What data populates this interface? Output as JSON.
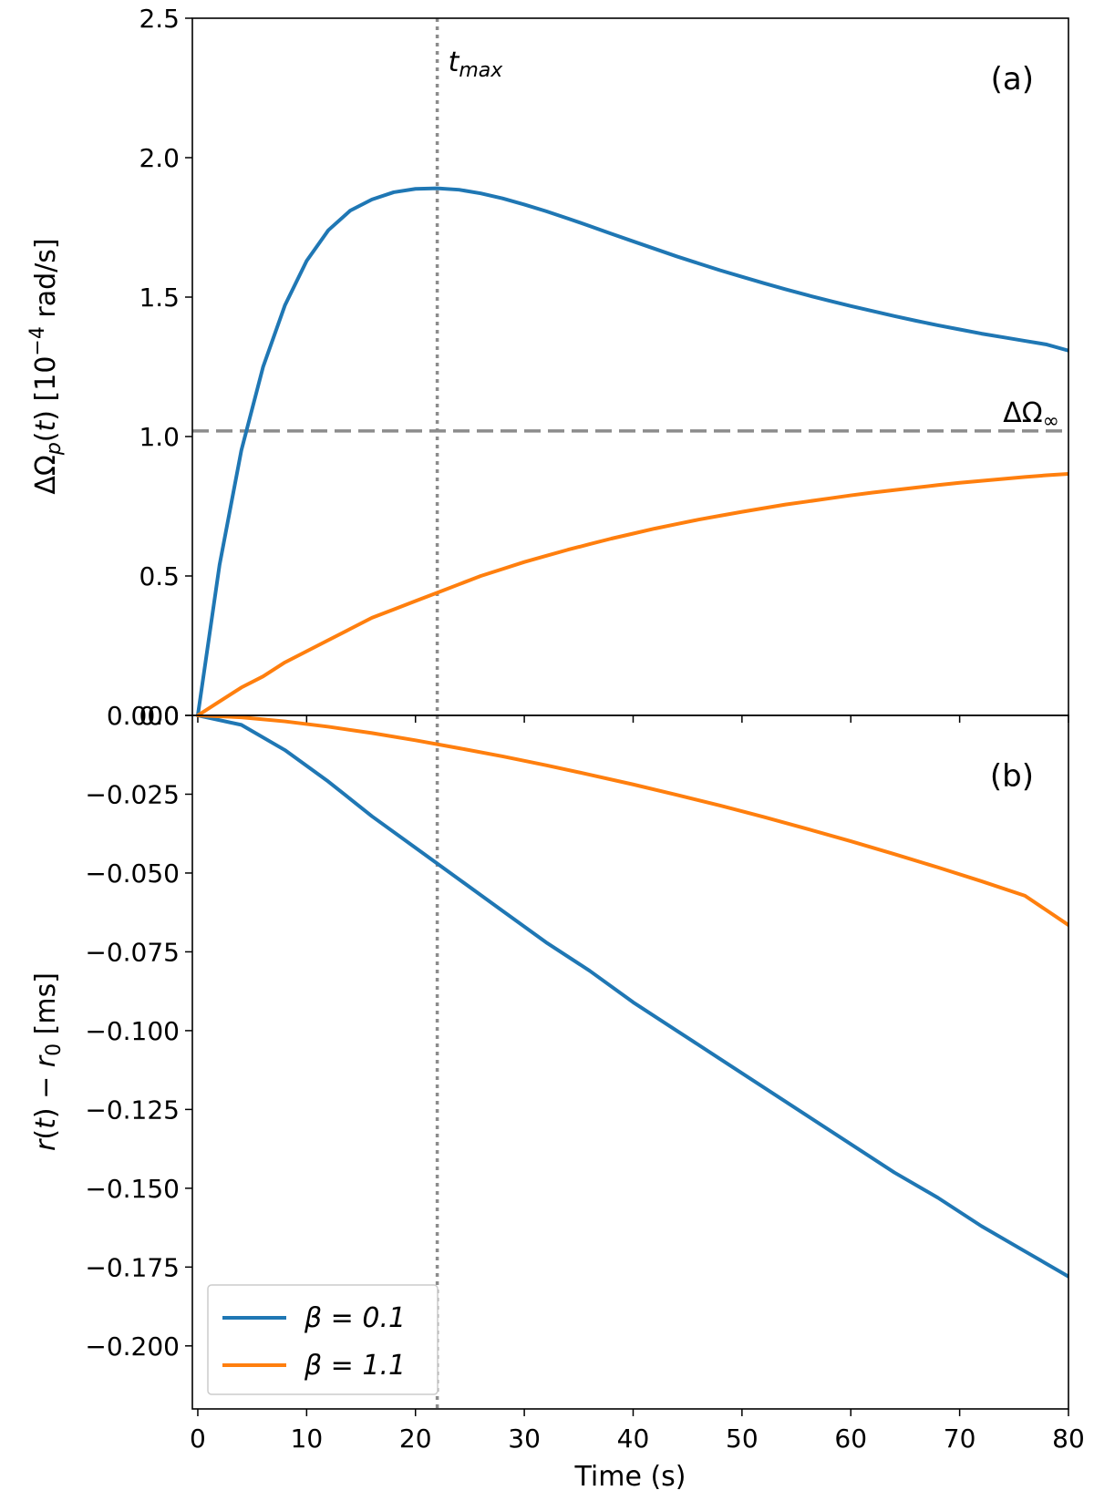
{
  "chart_data": [
    {
      "type": "line",
      "panel_label": "(a)",
      "ylabel": "ΔΩp(t) [10−4 rad/s]",
      "xlabel": "",
      "xlim": [
        -0.5,
        80
      ],
      "ylim": [
        0,
        2.5
      ],
      "yticks": [
        0.0,
        0.5,
        1.0,
        1.5,
        2.0,
        2.5
      ],
      "ytick_labels": [
        "0.0",
        "0.5",
        "1.0",
        "1.5",
        "2.0",
        "2.5"
      ],
      "xticks": [
        0,
        10,
        20,
        30,
        40,
        50,
        60,
        70,
        80
      ],
      "x": [
        0,
        2,
        4,
        6,
        8,
        10,
        12,
        14,
        16,
        18,
        20,
        22,
        24,
        26,
        28,
        30,
        32,
        34,
        36,
        38,
        40,
        42,
        44,
        46,
        48,
        50,
        52,
        54,
        56,
        58,
        60,
        62,
        64,
        66,
        68,
        70,
        72,
        74,
        76,
        78,
        80
      ],
      "series": [
        {
          "name": "β = 0.1",
          "color": "#1f77b4",
          "values": [
            0,
            0.54,
            0.95,
            1.25,
            1.47,
            1.63,
            1.74,
            1.81,
            1.85,
            1.876,
            1.888,
            1.89,
            1.885,
            1.872,
            1.854,
            1.832,
            1.808,
            1.782,
            1.755,
            1.727,
            1.7,
            1.673,
            1.646,
            1.621,
            1.596,
            1.573,
            1.55,
            1.528,
            1.507,
            1.487,
            1.468,
            1.45,
            1.432,
            1.415,
            1.399,
            1.384,
            1.369,
            1.356,
            1.343,
            1.33,
            1.308
          ]
        },
        {
          "name": "β = 1.1",
          "color": "#ff7f0e",
          "values": [
            0,
            0.05,
            0.1,
            0.14,
            0.19,
            0.23,
            0.27,
            0.31,
            0.35,
            0.38,
            0.41,
            0.44,
            0.47,
            0.5,
            0.525,
            0.55,
            0.572,
            0.594,
            0.614,
            0.634,
            0.652,
            0.67,
            0.686,
            0.702,
            0.716,
            0.73,
            0.743,
            0.756,
            0.767,
            0.778,
            0.789,
            0.799,
            0.808,
            0.817,
            0.826,
            0.834,
            0.841,
            0.848,
            0.855,
            0.861,
            0.866
          ]
        }
      ],
      "hline": {
        "y": 1.02,
        "label": "ΔΩ∞",
        "style": "dashed",
        "color": "#8c8c8c"
      },
      "vline": {
        "x": 22,
        "label": "tmax",
        "style": "dotted",
        "color": "#8c8c8c"
      }
    },
    {
      "type": "line",
      "panel_label": "(b)",
      "ylabel": "r(t) − r0 [ms]",
      "xlabel": "Time (s)",
      "xlim": [
        -0.5,
        80
      ],
      "ylim": [
        -0.22,
        0
      ],
      "yticks": [
        0.0,
        -0.025,
        -0.05,
        -0.075,
        -0.1,
        -0.125,
        -0.15,
        -0.175,
        -0.2
      ],
      "ytick_labels": [
        "0.000",
        "−0.025",
        "−0.050",
        "−0.075",
        "−0.100",
        "−0.125",
        "−0.150",
        "−0.175",
        "−0.200"
      ],
      "xticks": [
        0,
        10,
        20,
        30,
        40,
        50,
        60,
        70,
        80
      ],
      "xtick_labels": [
        "0",
        "10",
        "20",
        "30",
        "40",
        "50",
        "60",
        "70",
        "80"
      ],
      "x": [
        0,
        4,
        8,
        12,
        16,
        20,
        24,
        28,
        32,
        36,
        40,
        44,
        48,
        52,
        56,
        60,
        64,
        68,
        72,
        76,
        80
      ],
      "series": [
        {
          "name": "β = 0.1",
          "color": "#1f77b4",
          "values": [
            0,
            -0.003,
            -0.011,
            -0.021,
            -0.032,
            -0.042,
            -0.052,
            -0.062,
            -0.072,
            -0.081,
            -0.091,
            -0.1,
            -0.109,
            -0.118,
            -0.127,
            -0.136,
            -0.145,
            -0.153,
            -0.162,
            -0.17,
            -0.178
          ]
        },
        {
          "name": "β = 1.1",
          "color": "#ff7f0e",
          "values": [
            0,
            -0.0006,
            -0.0019,
            -0.0036,
            -0.0056,
            -0.0079,
            -0.0104,
            -0.013,
            -0.0158,
            -0.0188,
            -0.0219,
            -0.0252,
            -0.0286,
            -0.0322,
            -0.036,
            -0.0399,
            -0.044,
            -0.0482,
            -0.0526,
            -0.0572,
            -0.0665
          ]
        }
      ],
      "vline": {
        "x": 22,
        "style": "dotted",
        "color": "#8c8c8c"
      },
      "legend": {
        "placement": "lower-left",
        "entries": [
          "β = 0.1",
          "β = 1.1"
        ]
      }
    }
  ]
}
